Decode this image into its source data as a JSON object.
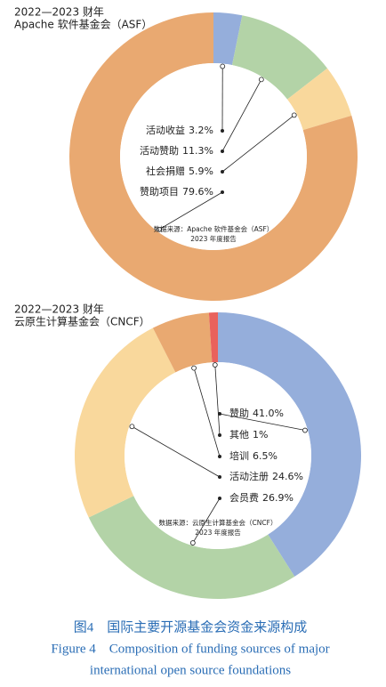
{
  "chart_data": [
    {
      "type": "pie",
      "title": [
        "2022—2023 财年",
        "Apache 软件基金会（ASF）"
      ],
      "categories": [
        "活动收益",
        "活动赞助",
        "社会捐赠",
        "赞助项目"
      ],
      "values": [
        3.2,
        11.3,
        5.9,
        79.6
      ],
      "value_labels": [
        "3.2%",
        "11.3%",
        "5.9%",
        "79.6%"
      ],
      "colors": [
        "#95aedb",
        "#b3d3a7",
        "#f9d89c",
        "#e9a971"
      ],
      "source": [
        "数据来源：Apache 软件基金会（ASF）",
        "2023 年度报告"
      ]
    },
    {
      "type": "pie",
      "title": [
        "2022—2023 财年",
        "云原生计算基金会（CNCF）"
      ],
      "categories": [
        "赞助",
        "会员费",
        "活动注册",
        "培训",
        "其他"
      ],
      "values": [
        41.0,
        26.9,
        24.6,
        6.5,
        1
      ],
      "value_labels": [
        "41.0%",
        "26.9%",
        "24.6%",
        "6.5%",
        "1%"
      ],
      "colors": [
        "#95aedb",
        "#b3d3a7",
        "#f9d89c",
        "#e9a971",
        "#e9625c"
      ],
      "source": [
        "数据来源：云原生计算基金会（CNCF）",
        "2023 年度报告"
      ]
    }
  ],
  "caption": [
    "图4　国际主要开源基金会资金来源构成",
    "Figure 4　Composition of funding sources of major",
    "international open source foundations"
  ]
}
